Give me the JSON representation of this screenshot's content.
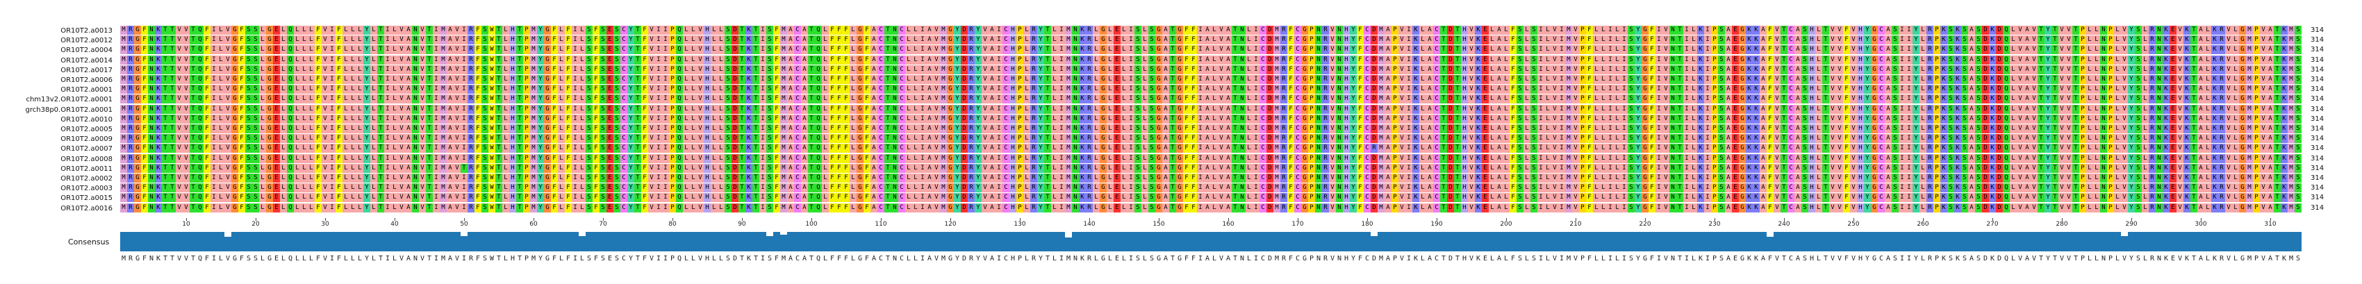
{
  "alignment": {
    "reference_sequence": "MRGFNKTTVVTQFILVGFSSLGELQLLLFVIFLLLYLTILVANVTIMAVIRFSWTLHTPMYGFLFILSFSESCYTFVIIPQLLVHLLSDTKTISFMACATQLFFFLGFACTNCLLIAVMGYDRYVAICHPLRYTLIMNKRLGLELISLSGATGFFIALVATNLICDMRFCGPNRVNHYFCDMAPVIKLACTDTHVKELALFSLSILVIMVPFLLILISYGFIVNTILKIPSAEGKKAFVTCASHLTVVFVHYGCASIIYLRPKSKSASDKDQLVAVTYTVVTPLLNPLVYSLRNKEVKTALKRVLGMPVATKMS",
    "sequences": [
      {
        "name": "OR10T2.a0013",
        "length": "314",
        "variants": []
      },
      {
        "name": "OR10T2.a0012",
        "length": "314",
        "variants": []
      },
      {
        "name": "OR10T2.a0004",
        "length": "314",
        "variants": []
      },
      {
        "name": "OR10T2.a0014",
        "length": "314",
        "variants": []
      },
      {
        "name": "OR10T2.a0017",
        "length": "314",
        "variants": []
      },
      {
        "name": "OR10T2.a0006",
        "length": "314",
        "variants": []
      },
      {
        "name": "OR10T2.a0001",
        "length": "314",
        "variants": []
      },
      {
        "name": "chm13v2.OR10T2.a0001",
        "length": "314",
        "variants": []
      },
      {
        "name": "grch38p0.OR10T2.a0001",
        "length": "314",
        "variants": []
      },
      {
        "name": "OR10T2.a0010",
        "length": "314",
        "variants": []
      },
      {
        "name": "OR10T2.a0005",
        "length": "314",
        "variants": []
      },
      {
        "name": "OR10T2.a0009",
        "length": "314",
        "variants": []
      },
      {
        "name": "OR10T2.a0007",
        "length": "314",
        "variants": [
          {
            "pos": 181,
            "aa": "R"
          }
        ]
      },
      {
        "name": "OR10T2.a0008",
        "length": "314",
        "variants": []
      },
      {
        "name": "OR10T2.a0011",
        "length": "314",
        "variants": [
          {
            "pos": 50,
            "aa": "T"
          }
        ]
      },
      {
        "name": "OR10T2.a0002",
        "length": "314",
        "variants": []
      },
      {
        "name": "OR10T2.a0003",
        "length": "314",
        "variants": []
      },
      {
        "name": "OR10T2.a0015",
        "length": "314",
        "variants": []
      },
      {
        "name": "OR10T2.a0016",
        "length": "314",
        "variants": []
      }
    ],
    "ruler_positions": [
      10,
      20,
      30,
      40,
      50,
      60,
      70,
      80,
      90,
      100,
      110,
      120,
      130,
      140,
      150,
      160,
      170,
      180,
      190,
      200,
      210,
      220,
      230,
      240,
      250,
      260,
      270,
      280,
      290,
      300,
      310
    ],
    "consensus_label": "Consensus",
    "consensus_sequence": "MRGFNKTTVVTQFILVGFSSLGELQLLLFVIFLLLYLTILVANVTIMAVIRFSWTLHTPMYGFLFILSFSESCYTFVIIPQLLVHLLSDTKTISFMACATQLFFFLGFACTNCLLIAVMGYDRYVAICHPLRYTLIMNKRLGLELISLSGATGFFIALVATNLICDMRFCGPNRVNHYFCDMAPVIKLACTDTHVKELALFSLSILVIMVPFLLILISYGFIVNTILKIPSAEGKKAFVTCASHLTVVFVHYGCASIIYLRPKSKSASDKDQLVAVTYTVVTPLLNPLVYSLRNKEVKTALKRVLGMPVATKMS",
    "conservation_dips": [
      {
        "pos": 16,
        "level": 0.75
      },
      {
        "pos": 50,
        "level": 0.8
      },
      {
        "pos": 67,
        "level": 0.8
      },
      {
        "pos": 94,
        "level": 0.8
      },
      {
        "pos": 96,
        "level": 0.85
      },
      {
        "pos": 137,
        "level": 0.7
      },
      {
        "pos": 181,
        "level": 0.8
      },
      {
        "pos": 238,
        "level": 0.75
      },
      {
        "pos": 289,
        "level": 0.8
      }
    ],
    "residue_colors": {
      "A": "#f7a8a8",
      "V": "#f7a8a8",
      "L": "#f7a8a8",
      "I": "#f7a8a8",
      "M": "#e0a0d8",
      "F": "#f4f400",
      "W": "#f4f400",
      "Y": "#3dd7a0",
      "G": "#ff8c3a",
      "P": "#ffd700",
      "S": "#2ee02e",
      "T": "#2ee02e",
      "N": "#2ee02e",
      "Q": "#2ee02e",
      "C": "#f47cf4",
      "D": "#ff3030",
      "E": "#ff3030",
      "K": "#7e7ef6",
      "R": "#7e7ef6",
      "H": "#b7a4f0",
      "default": "#dddddd"
    },
    "consensus_bar_color": "#1f77b4"
  }
}
